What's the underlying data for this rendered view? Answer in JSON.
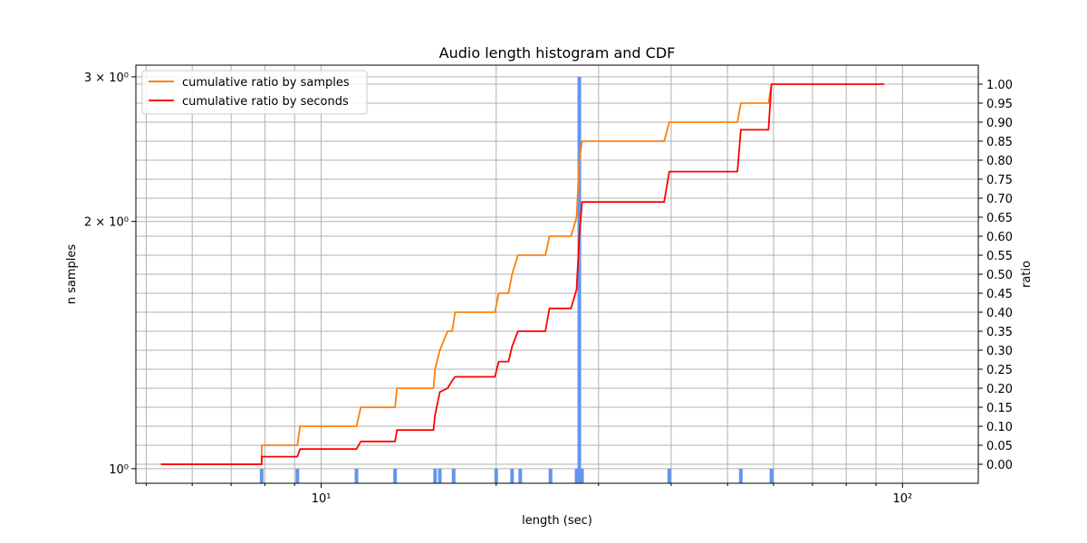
{
  "chart_data": {
    "type": "line",
    "title": "Audio length histogram and CDF",
    "xlabel": "length (sec)",
    "ylabel_left": "n samples",
    "ylabel_right": "ratio",
    "x_scale": "log",
    "x_range": [
      4.8,
      135
    ],
    "y_left_scale": "log",
    "y_left_range": [
      0.96,
      3.1
    ],
    "y_right_range": [
      -0.05,
      1.05
    ],
    "grid": true,
    "legend_position": "upper left",
    "x_ticks": [
      {
        "value": 10,
        "label": "10¹"
      },
      {
        "value": 100,
        "label": "10²"
      }
    ],
    "y_left_ticks": [
      {
        "value": 1,
        "label": "10⁰"
      },
      {
        "value": 2,
        "label": "2 × 10⁰"
      },
      {
        "value": 3,
        "label": "3 × 10⁰"
      }
    ],
    "y_right_ticks": [
      "0.00",
      "0.05",
      "0.10",
      "0.15",
      "0.20",
      "0.25",
      "0.30",
      "0.35",
      "0.40",
      "0.45",
      "0.50",
      "0.55",
      "0.60",
      "0.65",
      "0.70",
      "0.75",
      "0.80",
      "0.85",
      "0.90",
      "0.95",
      "1.00"
    ],
    "histogram": {
      "name": "histogram",
      "color": "#6495ed",
      "bars": [
        {
          "x": 7.9,
          "count": 1
        },
        {
          "x": 9.1,
          "count": 1
        },
        {
          "x": 11.5,
          "count": 1
        },
        {
          "x": 13.4,
          "count": 1
        },
        {
          "x": 15.7,
          "count": 1
        },
        {
          "x": 16.0,
          "count": 1
        },
        {
          "x": 16.9,
          "count": 1
        },
        {
          "x": 20.0,
          "count": 1
        },
        {
          "x": 21.3,
          "count": 1
        },
        {
          "x": 22.0,
          "count": 1
        },
        {
          "x": 24.8,
          "count": 1
        },
        {
          "x": 27.5,
          "count": 1
        },
        {
          "x": 27.8,
          "count": 3
        },
        {
          "x": 28.1,
          "count": 1
        },
        {
          "x": 39.7,
          "count": 1
        },
        {
          "x": 52.7,
          "count": 1
        },
        {
          "x": 59.5,
          "count": 1
        }
      ]
    },
    "series": [
      {
        "name": "cumulative ratio by samples",
        "color": "#ff7f0e",
        "x": [
          5.3,
          7.9,
          7.9,
          9.1,
          9.2,
          11.5,
          11.7,
          13.4,
          13.5,
          15.6,
          15.7,
          16.0,
          16.5,
          16.8,
          17.0,
          19.9,
          20.2,
          21.0,
          21.3,
          21.8,
          24.3,
          24.7,
          26.9,
          27.5,
          27.8,
          28.1,
          38.9,
          39.7,
          52.0,
          52.7,
          58.8,
          59.5
        ],
        "y": [
          0.0,
          0.0,
          0.05,
          0.05,
          0.1,
          0.1,
          0.15,
          0.15,
          0.2,
          0.2,
          0.25,
          0.3,
          0.35,
          0.35,
          0.4,
          0.4,
          0.45,
          0.45,
          0.5,
          0.55,
          0.55,
          0.6,
          0.6,
          0.65,
          0.8,
          0.85,
          0.85,
          0.9,
          0.9,
          0.95,
          0.95,
          1.0
        ]
      },
      {
        "name": "cumulative ratio by seconds",
        "color": "#ff0000",
        "x": [
          5.3,
          7.9,
          7.9,
          9.1,
          9.2,
          11.5,
          11.7,
          13.4,
          13.5,
          15.6,
          15.7,
          16.0,
          16.5,
          16.8,
          17.0,
          19.9,
          20.2,
          21.0,
          21.3,
          21.8,
          24.3,
          24.7,
          26.9,
          27.5,
          27.8,
          28.1,
          38.9,
          39.7,
          52.0,
          52.7,
          58.8,
          59.5,
          93.0
        ],
        "y": [
          0.0,
          0.0,
          0.02,
          0.02,
          0.04,
          0.04,
          0.06,
          0.06,
          0.09,
          0.09,
          0.13,
          0.19,
          0.2,
          0.22,
          0.23,
          0.23,
          0.27,
          0.27,
          0.31,
          0.35,
          0.35,
          0.41,
          0.41,
          0.46,
          0.6,
          0.69,
          0.69,
          0.77,
          0.77,
          0.88,
          0.88,
          1.0,
          1.0
        ]
      }
    ]
  }
}
